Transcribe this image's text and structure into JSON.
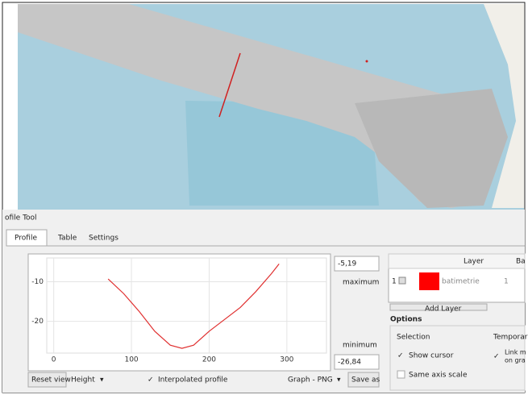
{
  "panel": {
    "title": "ofile Tool"
  },
  "tabs": [
    "Profile",
    "Table",
    "Settings"
  ],
  "profile_plot": {
    "type": "line",
    "x": [
      70,
      90,
      110,
      130,
      150,
      165,
      180,
      200,
      220,
      240,
      260,
      280,
      290
    ],
    "values": [
      -9.3,
      -13,
      -17.5,
      -22.5,
      -26,
      -26.8,
      -26,
      -22.5,
      -19.5,
      -16.5,
      -12.5,
      -8,
      -5.5
    ],
    "color": "#e03030",
    "xlim": [
      -9,
      351
    ],
    "ylim": [
      -28,
      -4
    ],
    "xticks": [
      0,
      100,
      200,
      300
    ],
    "yticks": [
      -10,
      -20
    ],
    "grid": true
  },
  "range": {
    "max_value": "-5,19",
    "max_label": "maximum",
    "min_label": "minimum",
    "min_value": "-26,84"
  },
  "toolbar": {
    "reset": "Reset view",
    "mode": "Height",
    "interpolated": "Interpolated profile",
    "export": "Graph - PNG",
    "save": "Save as"
  },
  "layers": {
    "headers": [
      "Layer",
      "Ba"
    ],
    "rows": [
      [
        "1",
        "batimetrie",
        "1"
      ]
    ],
    "add_button": "Add Layer"
  },
  "options": {
    "title": "Options",
    "selection": "Selection",
    "temporary": "Temporar",
    "show_cursor": "Show cursor",
    "link_1": "Link m",
    "link_2": "on gra",
    "same_axis": "Same axis scale"
  }
}
